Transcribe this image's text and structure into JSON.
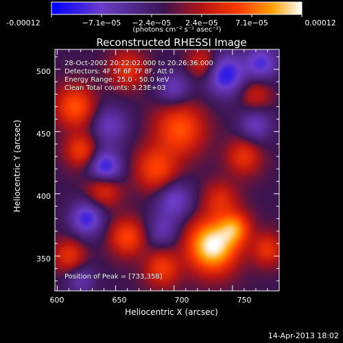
{
  "colorbar": {
    "min_label": "-0.00012",
    "tick_labels": [
      "-0.00012",
      "−7.1e−05",
      "−2.4e−05",
      "2.4e−05",
      "7.1e−05",
      "0.00012"
    ],
    "units": "(photons cm⁻² s⁻¹ asec⁻²)"
  },
  "chart_data": {
    "type": "heatmap",
    "title": "Reconstructed RHESSI Image",
    "xlabel": "Heliocentric X (arcsec)",
    "ylabel": "Heliocentric Y (arcsec)",
    "xlim": [
      598,
      790
    ],
    "ylim": [
      322,
      516
    ],
    "x_ticks": [
      "600",
      "650",
      "700",
      "750"
    ],
    "y_ticks": [
      "350",
      "400",
      "450",
      "500"
    ],
    "value_range": [
      -0.00012,
      0.00012
    ],
    "colormap": [
      "#0000ff",
      "#6a3cc8",
      "#3c1450",
      "#b41414",
      "#ff3c00",
      "#ffa000",
      "#ffffff"
    ],
    "peak": {
      "x": 733,
      "y": 358
    },
    "sources": [
      {
        "x": 733,
        "y": 358,
        "amp": 1.0,
        "sigma": 14
      },
      {
        "x": 752,
        "y": 372,
        "amp": 0.55,
        "sigma": 9
      },
      {
        "x": 705,
        "y": 452,
        "amp": 0.5,
        "sigma": 14
      },
      {
        "x": 685,
        "y": 420,
        "amp": 0.45,
        "sigma": 12
      },
      {
        "x": 760,
        "y": 430,
        "amp": 0.35,
        "sigma": 10
      },
      {
        "x": 615,
        "y": 470,
        "amp": 0.5,
        "sigma": 11
      },
      {
        "x": 640,
        "y": 405,
        "amp": 0.4,
        "sigma": 10
      },
      {
        "x": 660,
        "y": 365,
        "amp": 0.45,
        "sigma": 10
      },
      {
        "x": 610,
        "y": 350,
        "amp": 0.35,
        "sigma": 9
      },
      {
        "x": 690,
        "y": 340,
        "amp": 0.4,
        "sigma": 10
      },
      {
        "x": 780,
        "y": 355,
        "amp": 0.35,
        "sigma": 9
      },
      {
        "x": 660,
        "y": 500,
        "amp": 0.35,
        "sigma": 10
      },
      {
        "x": 725,
        "y": 505,
        "amp": 0.3,
        "sigma": 9
      },
      {
        "x": 770,
        "y": 480,
        "amp": 0.25,
        "sigma": 9
      },
      {
        "x": 620,
        "y": 435,
        "amp": 0.4,
        "sigma": 9
      },
      {
        "x": 740,
        "y": 395,
        "amp": 0.3,
        "sigma": 10
      },
      {
        "x": 641,
        "y": 420,
        "amp": -0.55,
        "sigma": 10
      },
      {
        "x": 625,
        "y": 380,
        "amp": -0.45,
        "sigma": 10
      },
      {
        "x": 744,
        "y": 496,
        "amp": -0.5,
        "sigma": 12
      },
      {
        "x": 775,
        "y": 505,
        "amp": -0.4,
        "sigma": 10
      },
      {
        "x": 700,
        "y": 395,
        "amp": -0.35,
        "sigma": 11
      },
      {
        "x": 645,
        "y": 455,
        "amp": -0.3,
        "sigma": 11
      },
      {
        "x": 700,
        "y": 485,
        "amp": -0.3,
        "sigma": 10
      },
      {
        "x": 770,
        "y": 455,
        "amp": -0.3,
        "sigma": 10
      },
      {
        "x": 690,
        "y": 370,
        "amp": -0.25,
        "sigma": 10
      },
      {
        "x": 620,
        "y": 330,
        "amp": -0.25,
        "sigma": 9
      }
    ]
  },
  "info": {
    "line1": "28-Oct-2002 20:22:02.000 to 20:26:36.000",
    "line2": "Detectors: 4F 5F 6F 7F 8F, Att 0",
    "line3": "Energy Range: 25.0 - 50.0 keV",
    "line4": "Clean     Total counts: 3.23E+03",
    "peak_text": "Position of Peak = [733,358]"
  },
  "footer": "14-Apr-2013 18:02"
}
